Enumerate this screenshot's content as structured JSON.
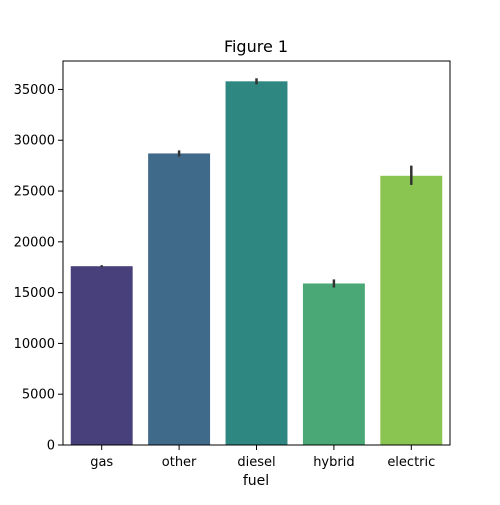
{
  "chart_data": {
    "type": "bar",
    "title": "Figure 1",
    "xlabel": "fuel",
    "ylabel": "",
    "categories": [
      "gas",
      "other",
      "diesel",
      "hybrid",
      "electric"
    ],
    "values": [
      17600,
      28700,
      35800,
      15900,
      26500
    ],
    "error_low": [
      17500,
      28400,
      35500,
      15500,
      25600
    ],
    "error_high": [
      17700,
      29000,
      36100,
      16300,
      27500
    ],
    "ylim": [
      0,
      37800
    ],
    "yticks": [
      0,
      5000,
      10000,
      15000,
      20000,
      25000,
      30000,
      35000
    ],
    "grid": false,
    "colors": [
      "#48407a",
      "#3f6a8a",
      "#2e8780",
      "#4aa876",
      "#8ac552"
    ],
    "error_color": "#333333"
  }
}
